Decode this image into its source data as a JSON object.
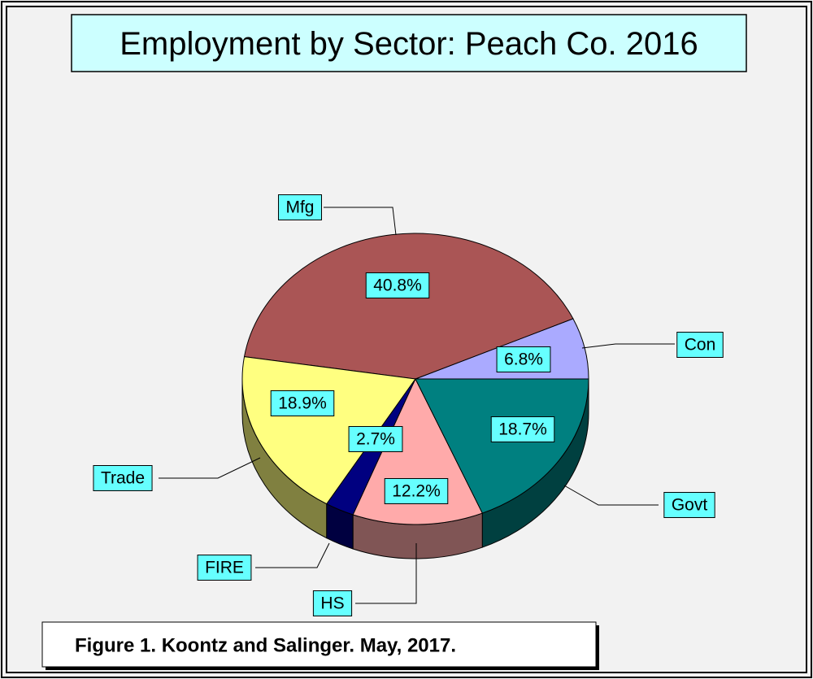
{
  "chart_data": {
    "type": "pie3d",
    "title": "Employment by Sector: Peach Co. 2016",
    "caption": "Figure 1.  Koontz and Salinger.  May, 2017.",
    "categories": [
      "Con",
      "Mfg",
      "Trade",
      "FIRE",
      "HS",
      "Govt"
    ],
    "values": [
      6.8,
      40.8,
      18.9,
      2.7,
      12.2,
      18.7
    ],
    "value_labels": [
      "6.8%",
      "40.8%",
      "18.9%",
      "2.7%",
      "12.2%",
      "18.7%"
    ],
    "colors": [
      "#aaaaff",
      "#aa5555",
      "#ffff80",
      "#000080",
      "#ffaaaa",
      "#008080"
    ]
  }
}
